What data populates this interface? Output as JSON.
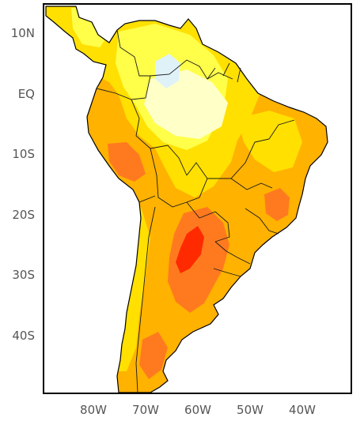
{
  "map": {
    "lat_labels": [
      "10N",
      "EQ",
      "10S",
      "20S",
      "30S",
      "40S"
    ],
    "lon_labels": [
      "80W",
      "70W",
      "60W",
      "50W",
      "40W"
    ],
    "colors": {
      "ocean": "#ffffff",
      "pale_blue": "#dff2f8",
      "pale_yellow": "#ffffc8",
      "light_yellow": "#ffff4a",
      "yellow": "#ffe000",
      "orange": "#ffb200",
      "dark_orange": "#ff7a1f",
      "red": "#ff2a00",
      "frame": "#000000",
      "border": "#1a1a1a"
    }
  }
}
